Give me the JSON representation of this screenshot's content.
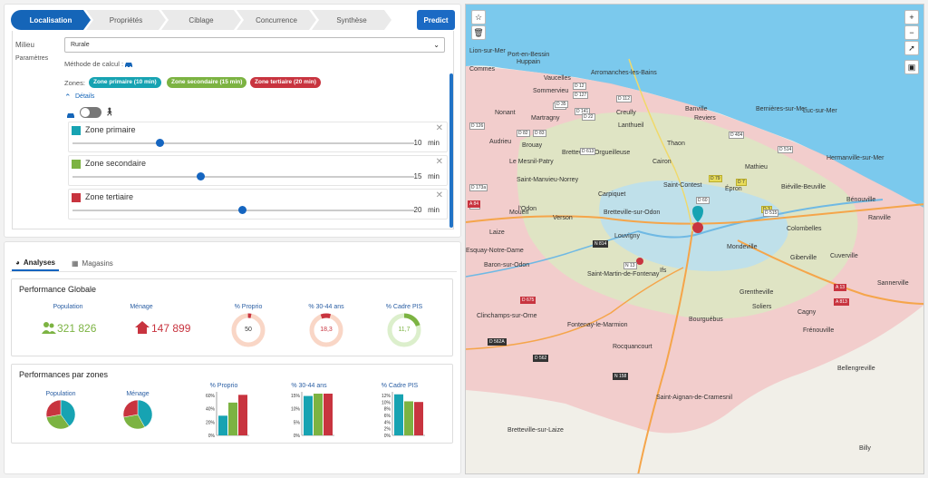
{
  "wizard": {
    "steps": [
      "Localisation",
      "Propriétés",
      "Ciblage",
      "Concurrence",
      "Synthèse"
    ],
    "predict_label": "Predict"
  },
  "form": {
    "milieu_label": "Milieu",
    "milieu_value": "Rurale",
    "params_label": "Paramètres",
    "method_label": "Méthode de calcul :",
    "zones_label": "Zones:",
    "chips": [
      {
        "label": "Zone primaire (10 min)",
        "color": "#17a3b2"
      },
      {
        "label": "Zone secondaire (15 min)",
        "color": "#7cb342"
      },
      {
        "label": "Zone tertiaire (20 min)",
        "color": "#c8343f"
      }
    ],
    "details_label": "Détails",
    "zones": [
      {
        "name": "Zone primaire",
        "value": "10",
        "unit": "min",
        "fraction": 0.26,
        "color": "#17a3b2"
      },
      {
        "name": "Zone secondaire",
        "value": "15",
        "unit": "min",
        "fraction": 0.38,
        "color": "#7cb342"
      },
      {
        "name": "Zone tertiaire",
        "value": "20",
        "unit": "min",
        "fraction": 0.5,
        "color": "#c8343f"
      }
    ]
  },
  "analysis": {
    "tabs": [
      "Analyses",
      "Magasins"
    ],
    "perf_title": "Performance Globale",
    "population_label": "Population",
    "population_value": "321 826",
    "menage_label": "Ménage",
    "menage_value": "147 899",
    "rings": [
      {
        "label": "% Proprio",
        "value": "50",
        "fraction": 0.03,
        "color": "#f4b69a",
        "accent": "#c8343f"
      },
      {
        "label": "% 30-44 ans",
        "value": "18,3",
        "fraction": 0.1,
        "color": "#f4b69a",
        "accent": "#c8343f"
      },
      {
        "label": "% Cadre PIS",
        "value": "11,7",
        "fraction": 0.2,
        "color": "#c7e3b0",
        "accent": "#7cb342"
      }
    ],
    "zones_title": "Performances par zones",
    "pie_population_label": "Population",
    "pie_menage_label": "Ménage"
  },
  "chart_data": [
    {
      "type": "pie",
      "title": "Population",
      "labels": [
        "Zone primaire",
        "Zone secondaire",
        "Zone tertiaire"
      ],
      "values": [
        40,
        32,
        28
      ]
    },
    {
      "type": "pie",
      "title": "Ménage",
      "labels": [
        "Zone primaire",
        "Zone secondaire",
        "Zone tertiaire"
      ],
      "values": [
        42,
        30,
        28
      ]
    },
    {
      "type": "bar",
      "title": "% Proprio",
      "categories": [
        "Zone primaire",
        "Zone secondaire",
        "Zone tertiaire"
      ],
      "values": [
        33,
        55,
        68
      ],
      "yticks": [
        "0%",
        "20%",
        "40%",
        "60%"
      ],
      "ylim": [
        0,
        70
      ]
    },
    {
      "type": "bar",
      "title": "% 30-44 ans",
      "categories": [
        "Zone primaire",
        "Zone secondaire",
        "Zone tertiaire"
      ],
      "values": [
        17,
        18,
        18
      ],
      "yticks": [
        "0%",
        "5%",
        "10%",
        "15%"
      ],
      "ylim": [
        0,
        18
      ]
    },
    {
      "type": "bar",
      "title": "% Cadre PIS",
      "categories": [
        "Zone primaire",
        "Zone secondaire",
        "Zone tertiaire"
      ],
      "values": [
        12.3,
        10.2,
        10
      ],
      "yticks": [
        "0%",
        "2%",
        "4%",
        "6%",
        "8%",
        "10%",
        "12%"
      ],
      "ylim": [
        0,
        12.5
      ]
    }
  ],
  "colors": {
    "primary": "#17a3b2",
    "secondary": "#7cb342",
    "tertiary": "#c8343f",
    "accent": "#1565b8"
  },
  "map": {
    "places": [
      [
        "Lion-sur-Mer",
        ""
      ],
      [
        "Port-en-Bessin",
        ""
      ],
      [
        "Huppain",
        ""
      ],
      [
        "Arromanches-les-Bains",
        ""
      ],
      [
        "Vaucelles",
        ""
      ],
      [
        "Commes",
        ""
      ],
      [
        "Sommervieu",
        ""
      ],
      [
        "Nonant",
        ""
      ],
      [
        "Martragny",
        ""
      ],
      [
        "Creully",
        ""
      ],
      [
        "Banville",
        ""
      ],
      [
        "Reviers",
        ""
      ],
      [
        "Bernières-sur-Mer",
        ""
      ],
      [
        "Luc-sur-Mer",
        ""
      ],
      [
        "Audrieu",
        ""
      ],
      [
        "Brouay",
        ""
      ],
      [
        "Lanthueil",
        ""
      ],
      [
        "Le Mesnil-Patry",
        ""
      ],
      [
        "Bretteville-l'Orgueilleuse",
        ""
      ],
      [
        "Thaon",
        ""
      ],
      [
        "Cairon",
        ""
      ],
      [
        "Mathieu",
        ""
      ],
      [
        "Hermanville-sur-Mer",
        ""
      ],
      [
        "Saint-Manvieu-Norrey",
        ""
      ],
      [
        "Carpiquet",
        ""
      ],
      [
        "Saint-Contest",
        ""
      ],
      [
        "Épron",
        ""
      ],
      [
        "Biéville-Beuville",
        ""
      ],
      [
        "Bénouville",
        ""
      ],
      [
        "Mouen",
        ""
      ],
      [
        "Verson",
        ""
      ],
      [
        "Bretteville-sur-Odon",
        ""
      ],
      [
        "Louvigny",
        ""
      ],
      [
        "Colombelles",
        ""
      ],
      [
        "Ranville",
        ""
      ],
      [
        "Mondeville",
        ""
      ],
      [
        "Giberville",
        ""
      ],
      [
        "Cuverville",
        ""
      ],
      [
        "Ifs",
        ""
      ],
      [
        "Saint-Martin-de-Fontenay",
        ""
      ],
      [
        "Grentheville",
        ""
      ],
      [
        "Sannerville",
        ""
      ],
      [
        "Clinchamps-sur-Orne",
        ""
      ],
      [
        "Soliers",
        ""
      ],
      [
        "Cagny",
        ""
      ],
      [
        "Bourguébus",
        ""
      ],
      [
        "Fontenay-le-Marmion",
        ""
      ],
      [
        "Frénouville",
        ""
      ],
      [
        "Rocquancourt",
        ""
      ],
      [
        "Bellengreville",
        ""
      ],
      [
        "Saint-Aignan-de-Cramesnil",
        ""
      ],
      [
        "Bretteville-sur-Laize",
        ""
      ],
      [
        "Billy",
        ""
      ],
      [
        "l'Odon",
        ""
      ],
      [
        "Laize",
        ""
      ],
      [
        "Esquay-Notre-Dame",
        ""
      ],
      [
        "Baron-sur-Odon",
        ""
      ]
    ],
    "roads": [
      "D 12",
      "D 127",
      "D 112",
      "D 87",
      "D 35",
      "D 141",
      "D 126",
      "D 82",
      "D 83",
      "D 22",
      "D 404",
      "D 514",
      "D 613",
      "D 79",
      "D 7",
      "D 173a",
      "D 9",
      "D 60",
      "D 3",
      "N 814",
      "N 13",
      "A 13",
      "D 562",
      "D 562A",
      "N 158",
      "A 84",
      "D 675",
      "A 813",
      "D 515"
    ]
  }
}
